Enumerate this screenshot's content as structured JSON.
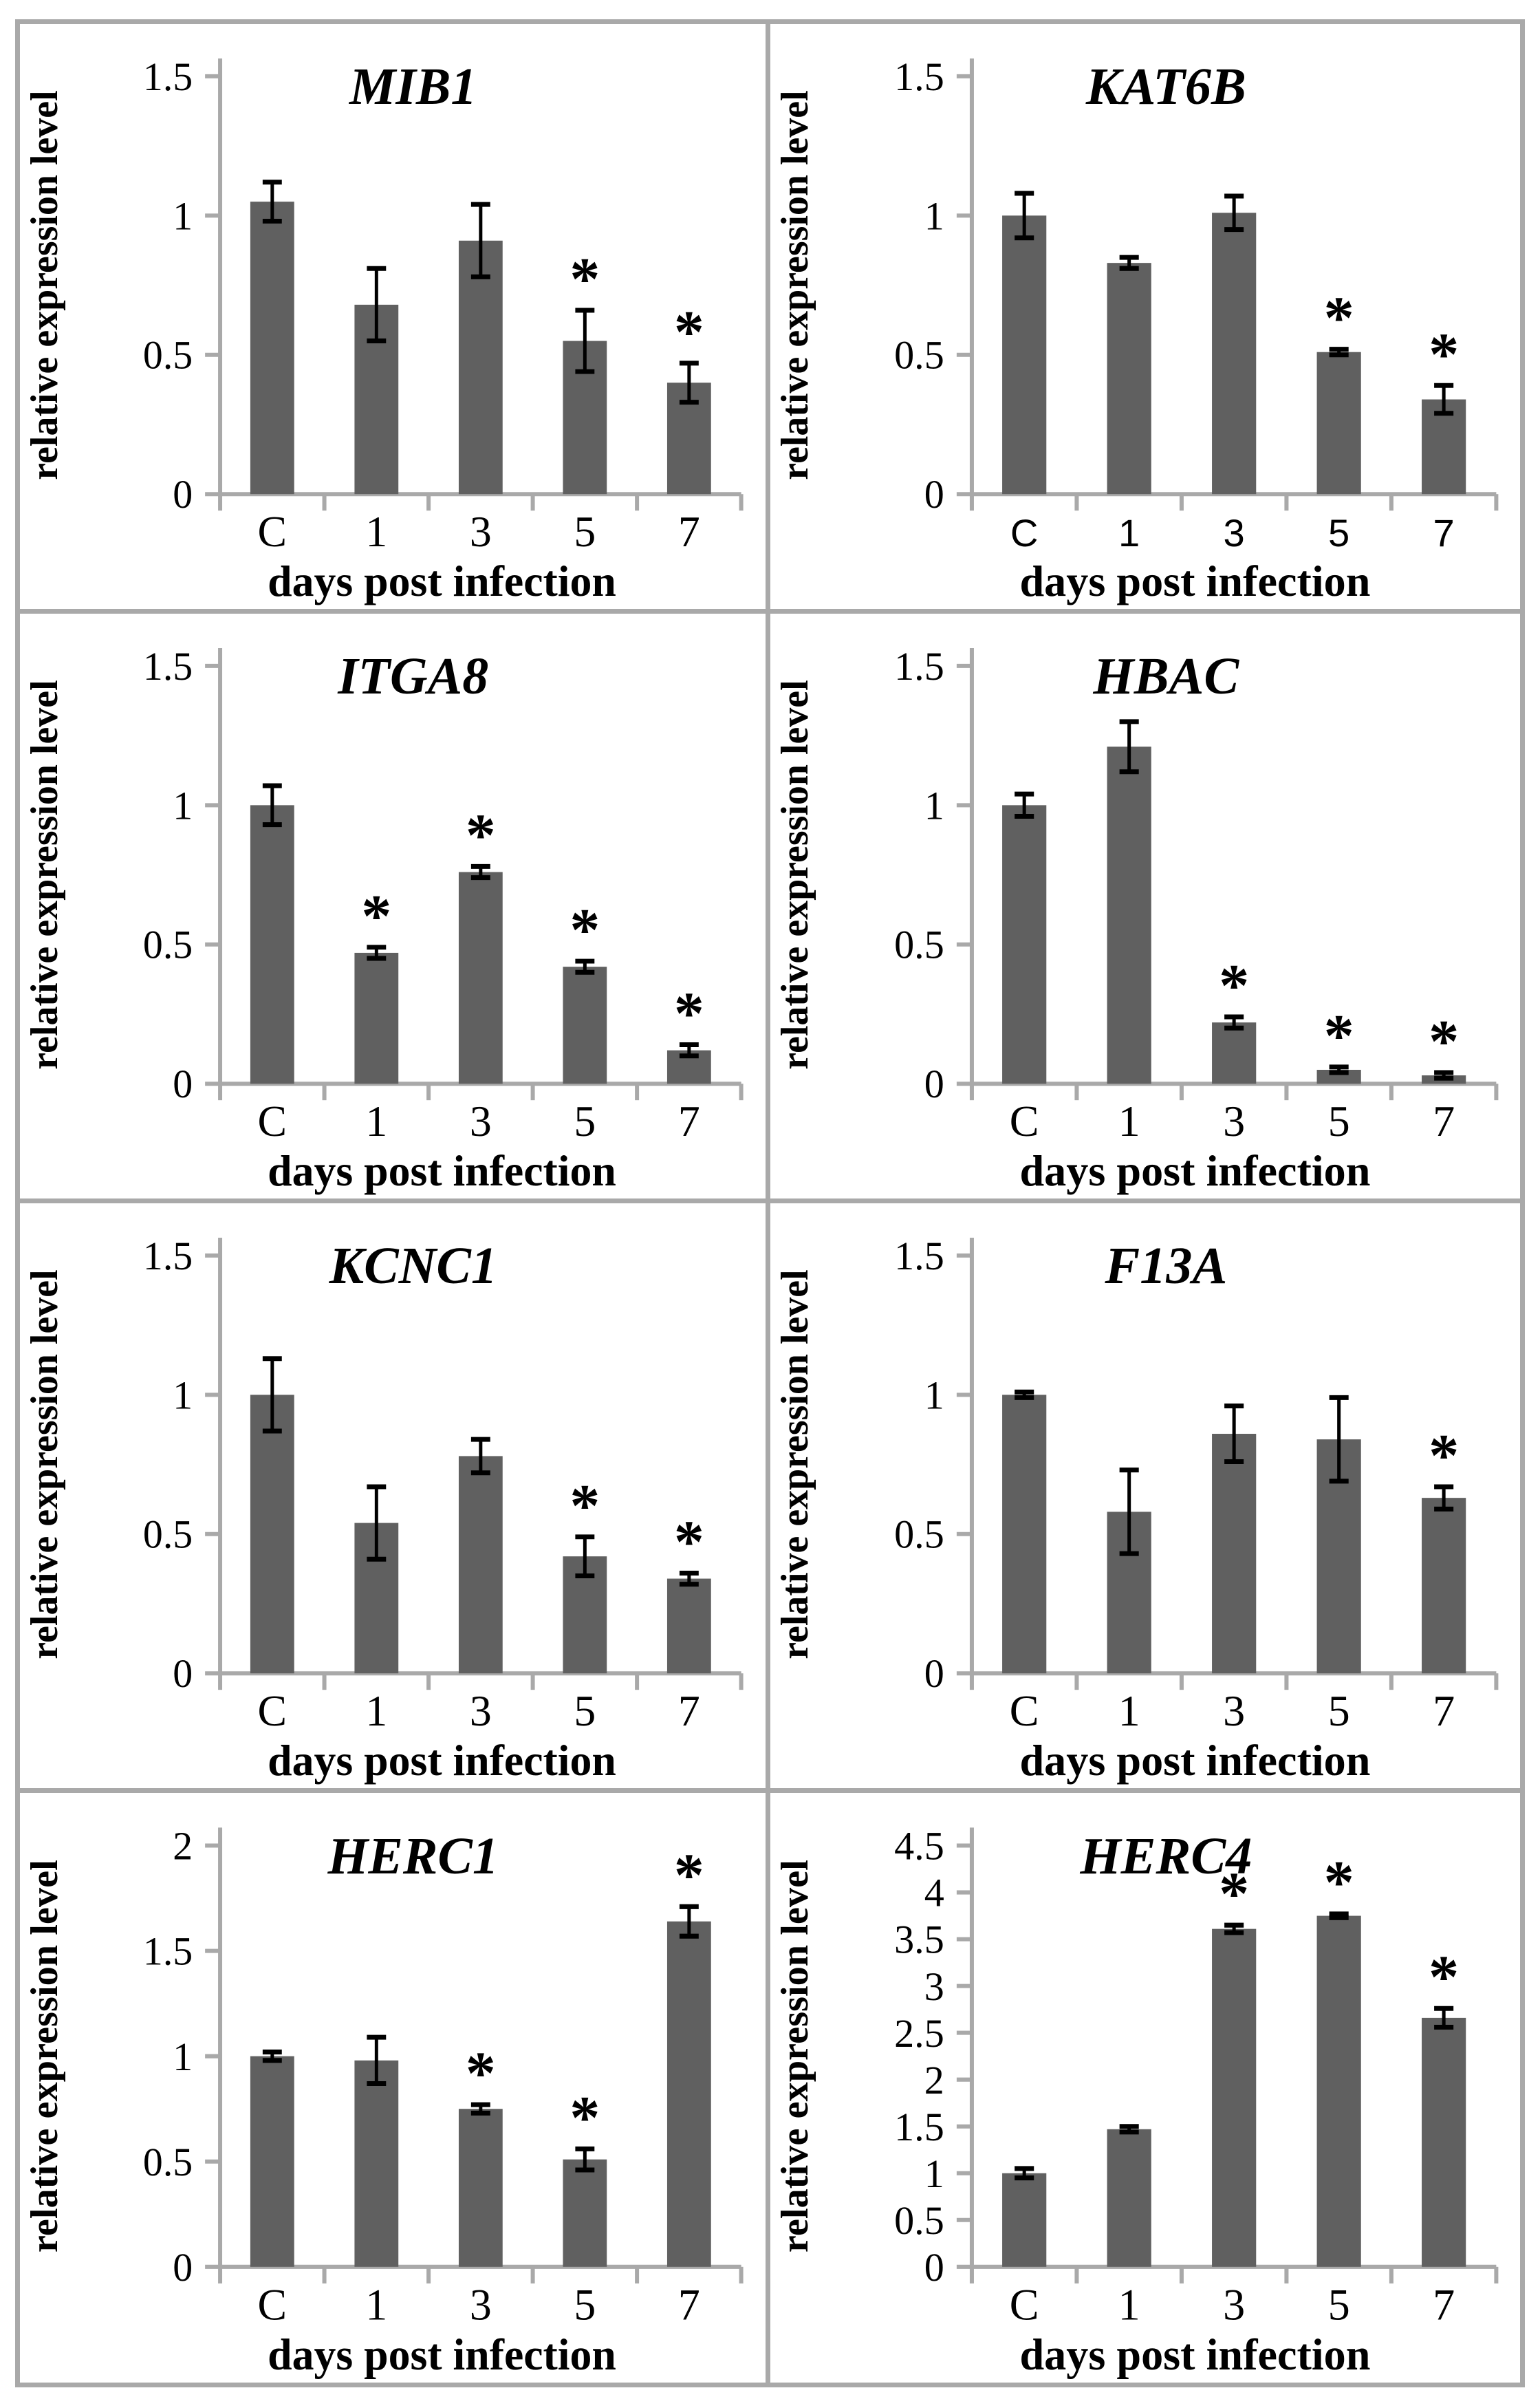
{
  "figure": {
    "rows": 4,
    "cols": 2,
    "border_color": "#a9a9a9",
    "background": "#ffffff"
  },
  "shared": {
    "bar_color": "#606060",
    "axis_color": "#a9a9a9",
    "error_color": "#000000",
    "text_color": "#000000",
    "sig_marker": "*",
    "xlabel": "days post infection",
    "ylabel": "relative expression level",
    "categories": [
      "C",
      "1",
      "3",
      "5",
      "7"
    ]
  },
  "chart_data": [
    {
      "type": "bar",
      "title": "MIB1",
      "xlabel": "days post infection",
      "ylabel": "relative expression level",
      "categories": [
        "C",
        "1",
        "3",
        "5",
        "7"
      ],
      "values": [
        1.05,
        0.68,
        0.91,
        0.55,
        0.4
      ],
      "errors": [
        0.07,
        0.13,
        0.13,
        0.11,
        0.07
      ],
      "significant": [
        false,
        false,
        false,
        true,
        true
      ],
      "ylim": [
        0,
        1.5
      ],
      "y_ticks": [
        "0",
        "0.5",
        "1",
        "1.5"
      ],
      "grid": false,
      "legend": false,
      "category_label_variant": "serif"
    },
    {
      "type": "bar",
      "title": "KAT6B",
      "xlabel": "days post infection",
      "ylabel": "relative expression level",
      "categories": [
        "C",
        "1",
        "3",
        "5",
        "7"
      ],
      "values": [
        1.0,
        0.83,
        1.01,
        0.51,
        0.34
      ],
      "errors": [
        0.08,
        0.02,
        0.06,
        0.01,
        0.05
      ],
      "significant": [
        false,
        false,
        false,
        true,
        true
      ],
      "ylim": [
        0,
        1.5
      ],
      "y_ticks": [
        "0",
        "0.5",
        "1",
        "1.5"
      ],
      "grid": false,
      "legend": false,
      "category_label_variant": "sans"
    },
    {
      "type": "bar",
      "title": "ITGA8",
      "xlabel": "days post infection",
      "ylabel": "relative expression level",
      "categories": [
        "C",
        "1",
        "3",
        "5",
        "7"
      ],
      "values": [
        1.0,
        0.47,
        0.76,
        0.42,
        0.12
      ],
      "errors": [
        0.07,
        0.02,
        0.02,
        0.02,
        0.02
      ],
      "significant": [
        false,
        true,
        true,
        true,
        true
      ],
      "ylim": [
        0,
        1.5
      ],
      "y_ticks": [
        "0",
        "0.5",
        "1",
        "1.5"
      ],
      "grid": false,
      "legend": false,
      "category_label_variant": "serif"
    },
    {
      "type": "bar",
      "title": "HBAC",
      "xlabel": "days post infection",
      "ylabel": "relative expression level",
      "categories": [
        "C",
        "1",
        "3",
        "5",
        "7"
      ],
      "values": [
        1.0,
        1.21,
        0.22,
        0.05,
        0.03
      ],
      "errors": [
        0.04,
        0.09,
        0.02,
        0.01,
        0.01
      ],
      "significant": [
        false,
        false,
        true,
        true,
        true
      ],
      "ylim": [
        0,
        1.5
      ],
      "y_ticks": [
        "0",
        "0.5",
        "1",
        "1.5"
      ],
      "grid": false,
      "legend": false,
      "category_label_variant": "serif"
    },
    {
      "type": "bar",
      "title": "KCNC1",
      "xlabel": "days post infection",
      "ylabel": "relative expression level",
      "categories": [
        "C",
        "1",
        "3",
        "5",
        "7"
      ],
      "values": [
        1.0,
        0.54,
        0.78,
        0.42,
        0.34
      ],
      "errors": [
        0.13,
        0.13,
        0.06,
        0.07,
        0.02
      ],
      "significant": [
        false,
        false,
        false,
        true,
        true
      ],
      "ylim": [
        0,
        1.5
      ],
      "y_ticks": [
        "0",
        "0.5",
        "1",
        "1.5"
      ],
      "grid": false,
      "legend": false,
      "category_label_variant": "serif"
    },
    {
      "type": "bar",
      "title": "F13A",
      "xlabel": "days post infection",
      "ylabel": "relative expression level",
      "categories": [
        "C",
        "1",
        "3",
        "5",
        "7"
      ],
      "values": [
        1.0,
        0.58,
        0.86,
        0.84,
        0.63
      ],
      "errors": [
        0.01,
        0.15,
        0.1,
        0.15,
        0.04
      ],
      "significant": [
        false,
        false,
        false,
        false,
        true
      ],
      "ylim": [
        0,
        1.5
      ],
      "y_ticks": [
        "0",
        "0.5",
        "1",
        "1.5"
      ],
      "grid": false,
      "legend": false,
      "category_label_variant": "serif"
    },
    {
      "type": "bar",
      "title": "HERC1",
      "xlabel": "days post infection",
      "ylabel": "relative expression level",
      "categories": [
        "C",
        "1",
        "3",
        "5",
        "7"
      ],
      "values": [
        1.0,
        0.98,
        0.75,
        0.51,
        1.64
      ],
      "errors": [
        0.02,
        0.11,
        0.02,
        0.05,
        0.07
      ],
      "significant": [
        false,
        false,
        true,
        true,
        true
      ],
      "ylim": [
        0,
        2
      ],
      "y_ticks": [
        "0",
        "0.5",
        "1",
        "1.5",
        "2"
      ],
      "grid": false,
      "legend": false,
      "category_label_variant": "serif"
    },
    {
      "type": "bar",
      "title": "HERC4",
      "xlabel": "days post infection",
      "ylabel": "relative expression level",
      "categories": [
        "C",
        "1",
        "3",
        "5",
        "7"
      ],
      "values": [
        1.0,
        1.47,
        3.61,
        3.75,
        2.66
      ],
      "errors": [
        0.05,
        0.03,
        0.04,
        0.02,
        0.1
      ],
      "significant": [
        false,
        false,
        true,
        true,
        true
      ],
      "ylim": [
        0,
        4.5
      ],
      "y_ticks": [
        "0",
        "0.5",
        "1",
        "1.5",
        "2",
        "2.5",
        "3",
        "3.5",
        "4",
        "4.5"
      ],
      "grid": false,
      "legend": false,
      "category_label_variant": "serif"
    }
  ]
}
